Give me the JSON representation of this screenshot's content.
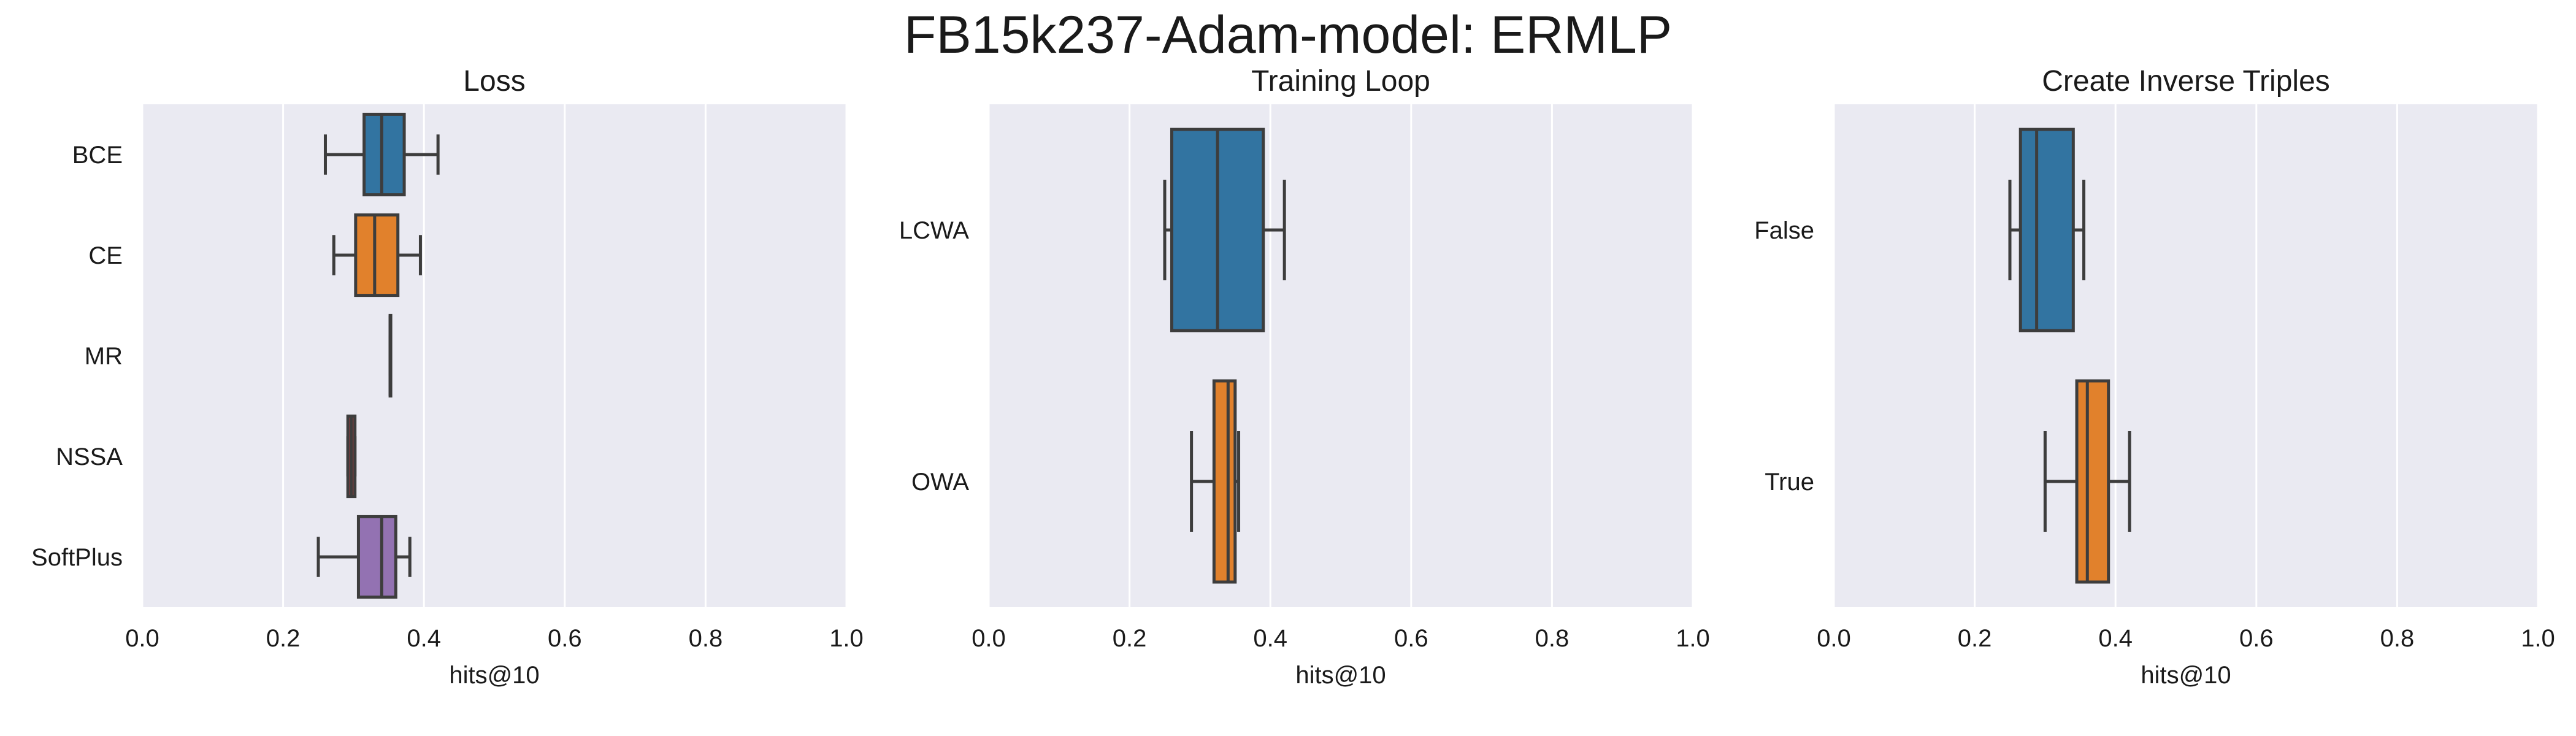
{
  "figure": {
    "title": "FB15k237-Adam-model: ERMLP"
  },
  "colors": {
    "plot_bg": "#eaeaf2",
    "grid": "#ffffff",
    "whisker": "#3d3d3d",
    "text": "#1a1a1a"
  },
  "chart_data": [
    {
      "type": "boxplot",
      "orientation": "horizontal",
      "title": "Loss",
      "xlabel": "hits@10",
      "ylabel": "",
      "xlim": [
        0.0,
        1.0
      ],
      "xticks": [
        "0.0",
        "0.2",
        "0.4",
        "0.6",
        "0.8",
        "1.0"
      ],
      "grid": true,
      "categories": [
        "BCE",
        "CE",
        "MR",
        "NSSA",
        "SoftPlus"
      ],
      "boxes": [
        {
          "label": "BCE",
          "color": "#3274a1",
          "whislo": 0.26,
          "q1": 0.315,
          "med": 0.34,
          "q3": 0.372,
          "whishi": 0.42
        },
        {
          "label": "CE",
          "color": "#e1812c",
          "whislo": 0.272,
          "q1": 0.303,
          "med": 0.33,
          "q3": 0.363,
          "whishi": 0.395
        },
        {
          "label": "MR",
          "color": "#3a923a",
          "whislo": 0.352,
          "q1": 0.352,
          "med": 0.352,
          "q3": 0.352,
          "whishi": 0.352
        },
        {
          "label": "NSSA",
          "color": "#c03d3e",
          "whislo": 0.292,
          "q1": 0.292,
          "med": 0.297,
          "q3": 0.302,
          "whishi": 0.302
        },
        {
          "label": "SoftPlus",
          "color": "#9372b2",
          "whislo": 0.25,
          "q1": 0.307,
          "med": 0.34,
          "q3": 0.36,
          "whishi": 0.38
        }
      ]
    },
    {
      "type": "boxplot",
      "orientation": "horizontal",
      "title": "Training Loop",
      "xlabel": "hits@10",
      "ylabel": "",
      "xlim": [
        0.0,
        1.0
      ],
      "xticks": [
        "0.0",
        "0.2",
        "0.4",
        "0.6",
        "0.8",
        "1.0"
      ],
      "grid": true,
      "categories": [
        "LCWA",
        "OWA"
      ],
      "boxes": [
        {
          "label": "LCWA",
          "color": "#3274a1",
          "whislo": 0.25,
          "q1": 0.26,
          "med": 0.325,
          "q3": 0.39,
          "whishi": 0.42
        },
        {
          "label": "OWA",
          "color": "#e1812c",
          "whislo": 0.288,
          "q1": 0.32,
          "med": 0.34,
          "q3": 0.35,
          "whishi": 0.355
        }
      ]
    },
    {
      "type": "boxplot",
      "orientation": "horizontal",
      "title": "Create Inverse Triples",
      "xlabel": "hits@10",
      "ylabel": "",
      "xlim": [
        0.0,
        1.0
      ],
      "xticks": [
        "0.0",
        "0.2",
        "0.4",
        "0.6",
        "0.8",
        "1.0"
      ],
      "grid": true,
      "categories": [
        "False",
        "True"
      ],
      "boxes": [
        {
          "label": "False",
          "color": "#3274a1",
          "whislo": 0.25,
          "q1": 0.265,
          "med": 0.288,
          "q3": 0.34,
          "whishi": 0.355
        },
        {
          "label": "True",
          "color": "#e1812c",
          "whislo": 0.3,
          "q1": 0.345,
          "med": 0.36,
          "q3": 0.39,
          "whishi": 0.42
        }
      ]
    }
  ]
}
